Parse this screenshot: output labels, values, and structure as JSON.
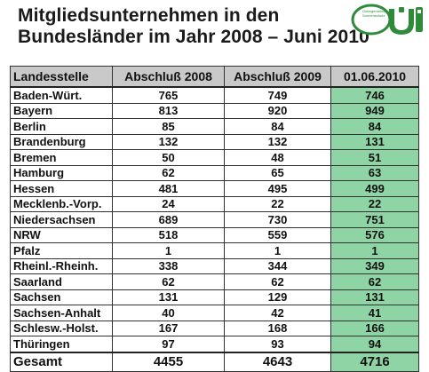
{
  "title": {
    "line1": "Mitgliedsunternehmen in den",
    "line2": "Bundesländer im Jahr 2008 – Juni 2010"
  },
  "logo": {
    "small_text": "Gütergemeinschaft Sonnenschutz",
    "accent_color": "#2e8b3a"
  },
  "table": {
    "headers": [
      "Landesstelle",
      "Abschluß 2008",
      "Abschluß 2009",
      "01.06.2010"
    ],
    "rows": [
      [
        "Baden-Würt.",
        "765",
        "749",
        "746"
      ],
      [
        "Bayern",
        "813",
        "920",
        "949"
      ],
      [
        "Berlin",
        "85",
        "84",
        "84"
      ],
      [
        "Brandenburg",
        "132",
        "132",
        "131"
      ],
      [
        "Bremen",
        "50",
        "48",
        "51"
      ],
      [
        "Hamburg",
        "62",
        "65",
        "63"
      ],
      [
        "Hessen",
        "481",
        "495",
        "499"
      ],
      [
        "Mecklenb.-Vorp.",
        "24",
        "22",
        "22"
      ],
      [
        "Niedersachsen",
        "689",
        "730",
        "751"
      ],
      [
        "NRW",
        "518",
        "559",
        "576"
      ],
      [
        "Pfalz",
        "1",
        "1",
        "1"
      ],
      [
        "Rheinl.-Rheinh.",
        "338",
        "344",
        "349"
      ],
      [
        "Saarland",
        "62",
        "62",
        "62"
      ],
      [
        "Sachsen",
        "131",
        "129",
        "131"
      ],
      [
        "Sachsen-Anhalt",
        "40",
        "42",
        "41"
      ],
      [
        "Schlesw.-Holst.",
        "167",
        "168",
        "166"
      ],
      [
        "Thüringen",
        "97",
        "93",
        "94"
      ]
    ],
    "total": [
      "Gesamt",
      "4455",
      "4643",
      "4716"
    ],
    "highlight_color": "#8fd4a4",
    "header_color": "#c9c9c9"
  }
}
